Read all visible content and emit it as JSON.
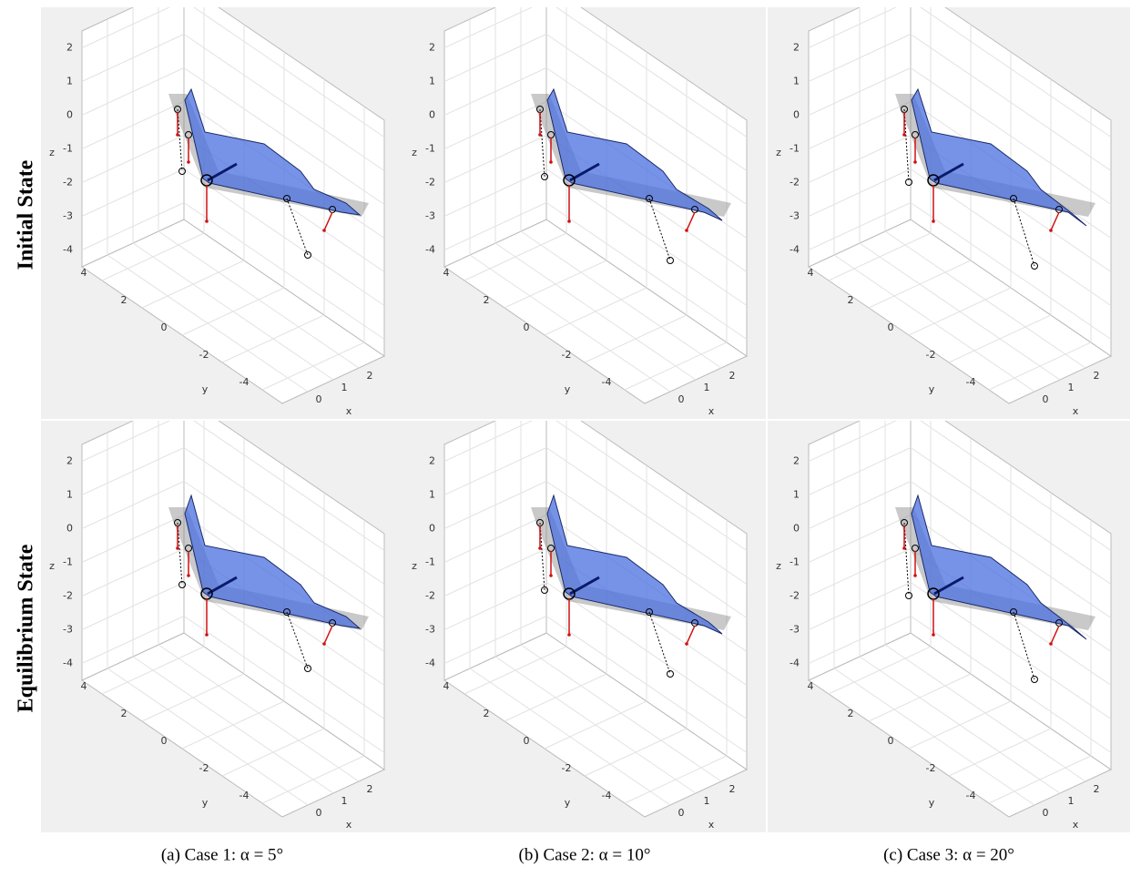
{
  "row_labels": [
    "Initial State",
    "Equilibrium State"
  ],
  "captions": [
    "(a) Case 1: α = 5°",
    "(b) Case 2: α = 10°",
    "(c) Case 3: α = 20°"
  ],
  "axes": {
    "x_label": "x",
    "y_label": "y",
    "z_label": "z",
    "x_ticks": [
      0,
      1,
      2
    ],
    "y_ticks": [
      4,
      2,
      0,
      -2,
      -4
    ],
    "z_ticks": [
      2,
      1,
      0,
      -1,
      -2,
      -3,
      -4
    ]
  }
}
